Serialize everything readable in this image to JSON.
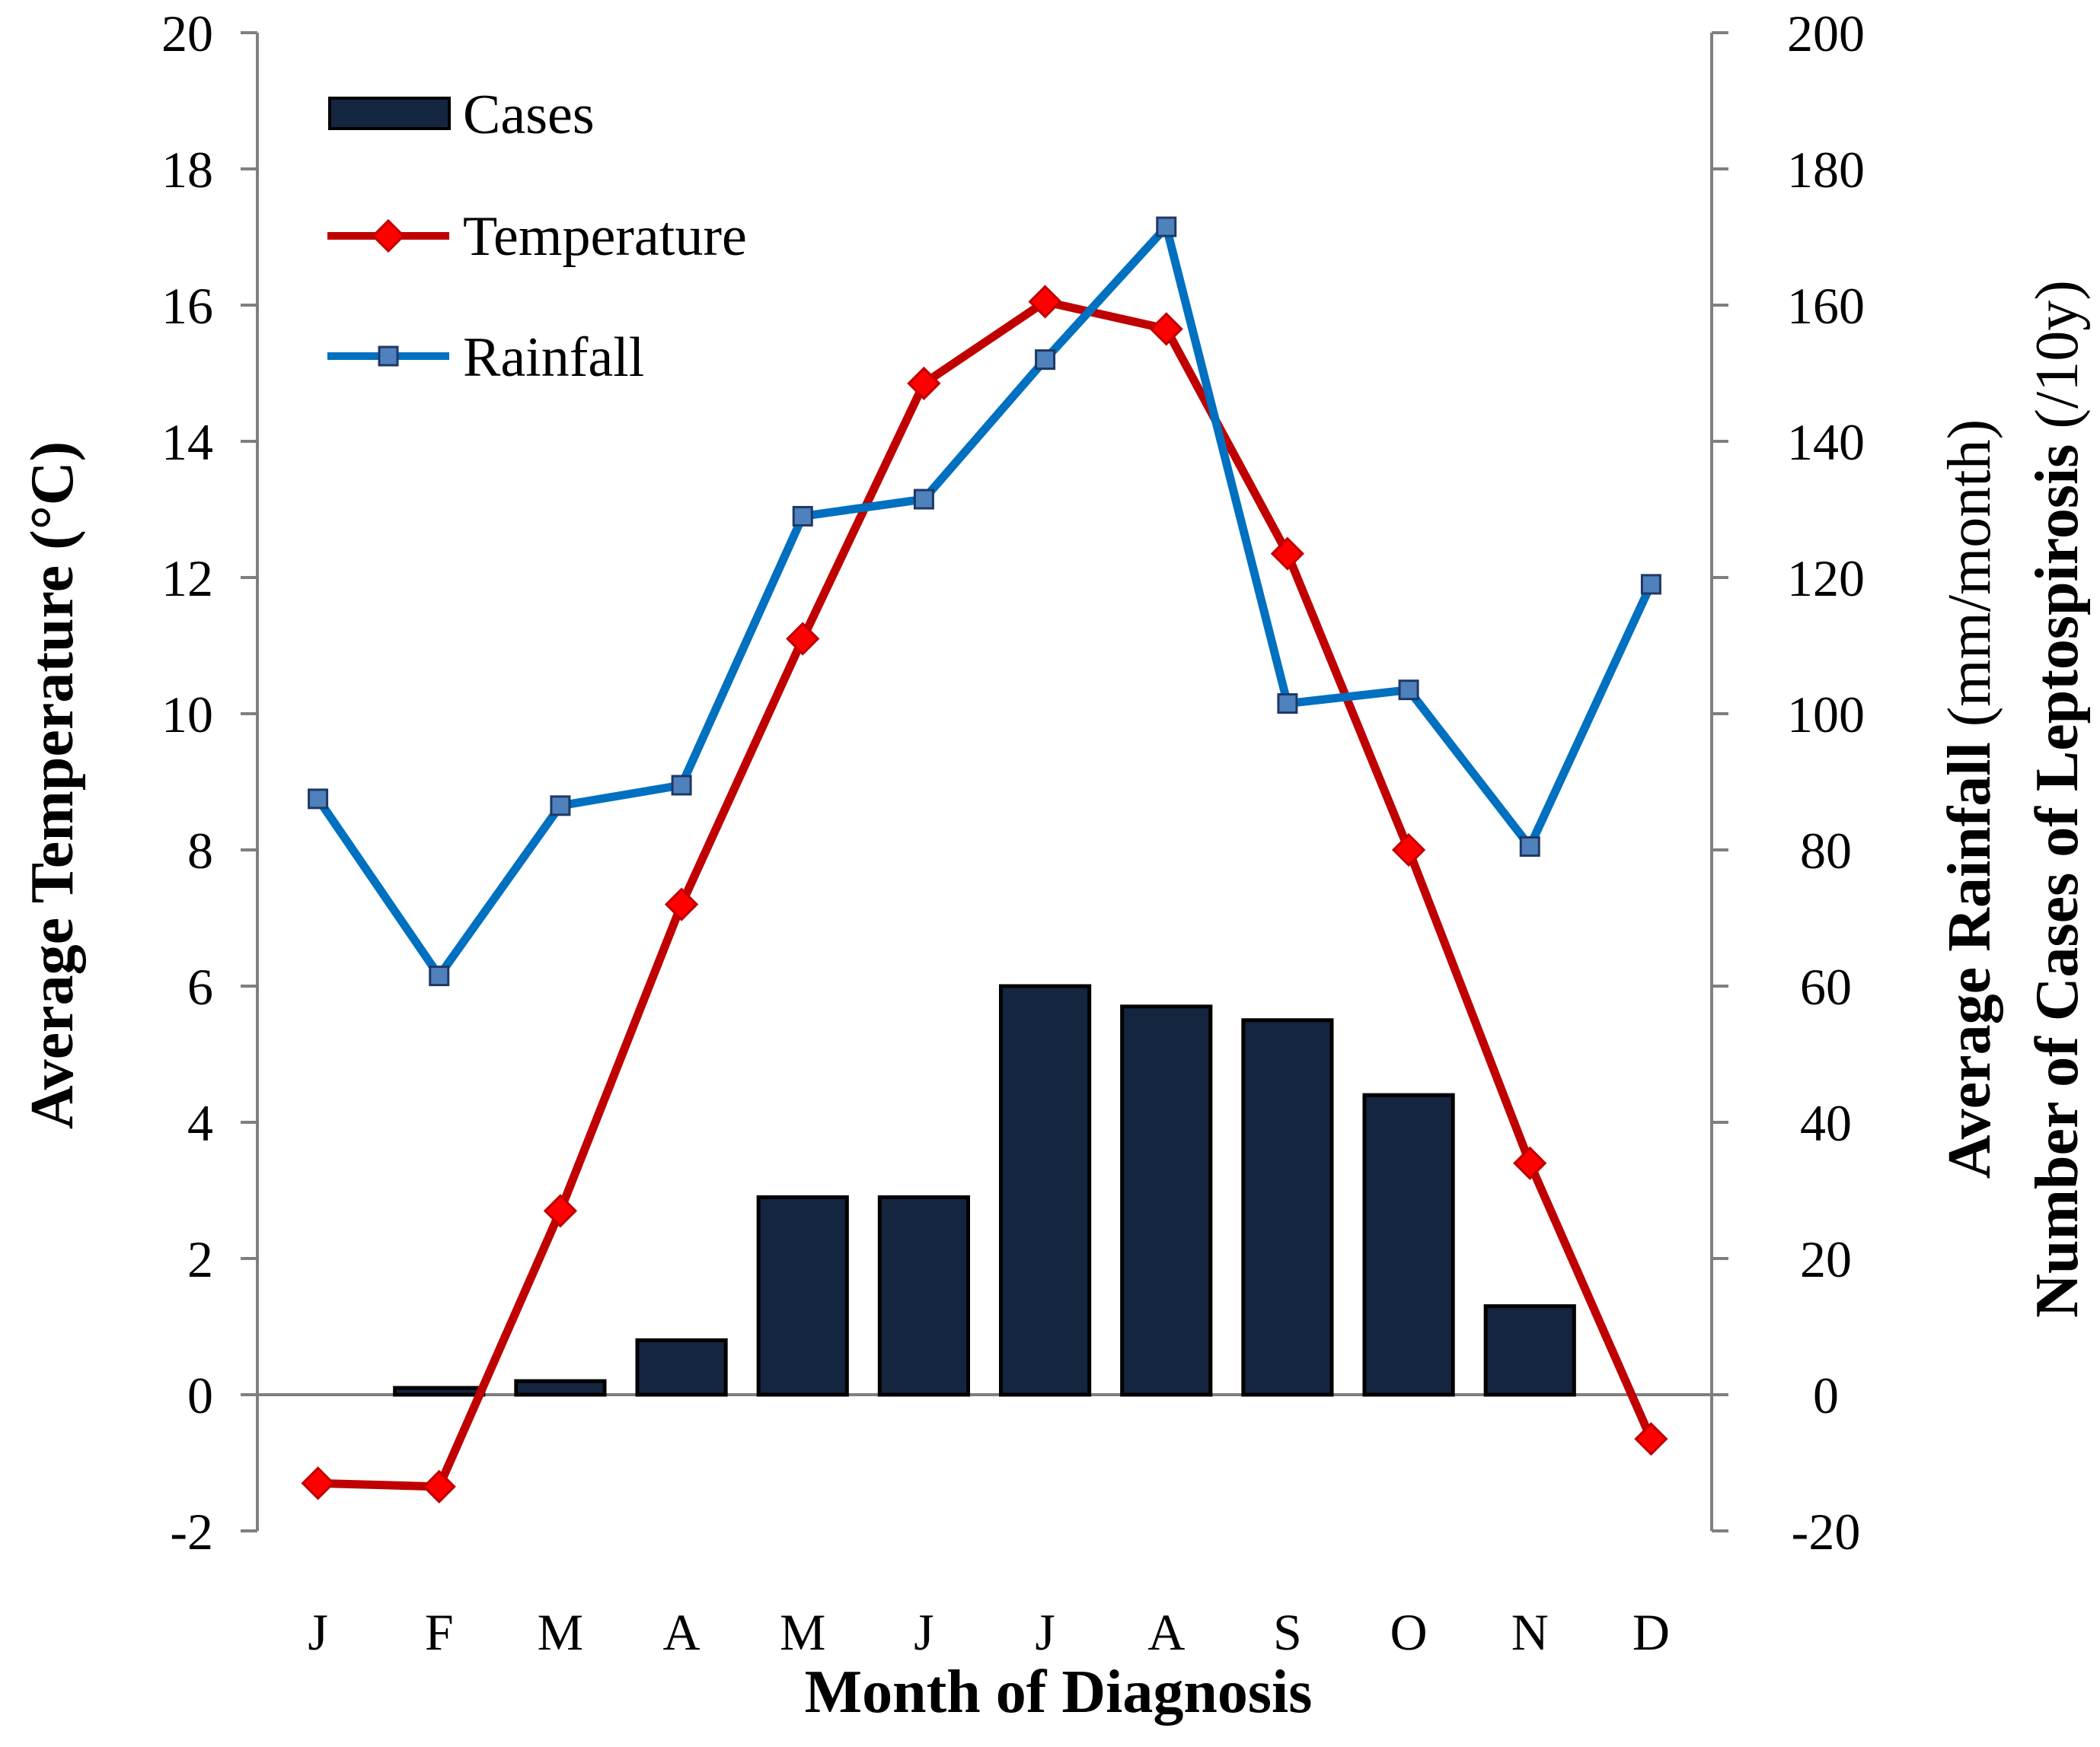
{
  "chart_data": {
    "type": "bar+line",
    "categories": [
      "J",
      "F",
      "M",
      "A",
      "M",
      "J",
      "J",
      "A",
      "S",
      "O",
      "N",
      "D"
    ],
    "series": [
      {
        "name": "Cases",
        "type": "bar",
        "axis": "right",
        "color": "#14253f",
        "values": [
          0,
          1,
          2,
          8,
          29,
          29,
          60,
          57,
          55,
          44,
          13,
          0
        ]
      },
      {
        "name": "Temperature",
        "type": "line",
        "axis": "left",
        "color": "#c00000",
        "marker": "diamond",
        "marker_color": "#ff0000",
        "values": [
          -1.3,
          -1.35,
          2.7,
          7.2,
          11.1,
          14.85,
          16.05,
          15.65,
          12.35,
          8.0,
          3.4,
          -0.65
        ]
      },
      {
        "name": "Rainfall",
        "type": "line",
        "axis": "right",
        "color": "#0070c0",
        "marker": "square",
        "marker_color": "#4f81bd",
        "values": [
          87.5,
          61.5,
          86.5,
          89.5,
          129,
          131.5,
          152,
          171.5,
          101.5,
          103.5,
          80.5,
          119
        ]
      }
    ],
    "left_axis": {
      "ylim": [
        -2,
        20
      ],
      "ticks": [
        "-2",
        "0",
        "2",
        "4",
        "6",
        "8",
        "10",
        "12",
        "14",
        "16",
        "18",
        "20"
      ]
    },
    "right_axis": {
      "ylim": [
        -20,
        200
      ],
      "ticks": [
        "-20",
        "0",
        "20",
        "40",
        "60",
        "80",
        "100",
        "120",
        "140",
        "160",
        "180",
        "200"
      ]
    },
    "xlabel": "Month of Diagnosis",
    "ylabel_left": "Average Temperature (°C)",
    "ylabel_right_line1": {
      "bold": "Average Rainfall",
      "normal": " (mm/month)"
    },
    "ylabel_right_line2": {
      "bold": "Number of Cases of Leptospirosis",
      "normal": " (/10y)"
    },
    "legend": {
      "position": "top-left",
      "entries": [
        "Cases",
        "Temperature",
        "Rainfall"
      ]
    }
  }
}
